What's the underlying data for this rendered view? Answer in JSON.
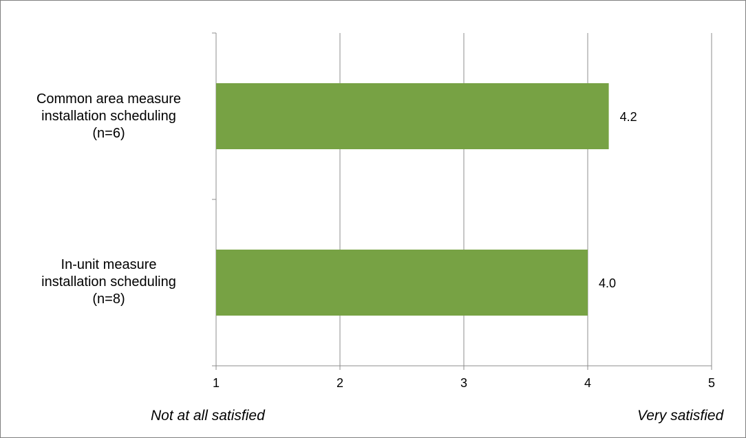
{
  "chart_data": {
    "type": "bar",
    "orientation": "horizontal",
    "categories": [
      "Common area measure\ninstallation scheduling\n(n=6)",
      "In-unit measure\ninstallation scheduling\n(n=8)"
    ],
    "values": [
      4.17,
      4.0
    ],
    "data_labels": [
      "4.2",
      "4.0"
    ],
    "xlim": [
      1,
      5
    ],
    "xticks": [
      "1",
      "2",
      "3",
      "4",
      "5"
    ],
    "scale_anchors": {
      "low": "Not at all satisfied",
      "high": "Very satisfied"
    },
    "bar_color": "#77a244",
    "grid": true,
    "legend": "none"
  }
}
